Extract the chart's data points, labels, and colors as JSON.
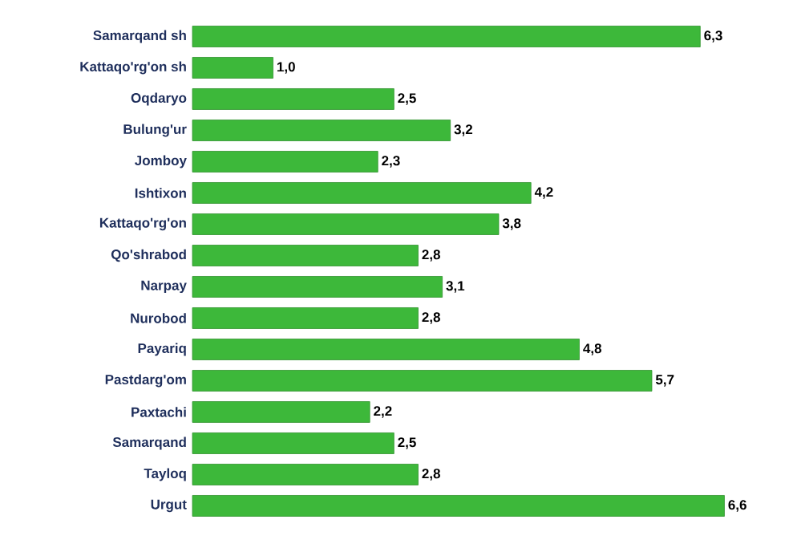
{
  "chart_data": {
    "type": "bar",
    "orientation": "horizontal",
    "categories": [
      "Samarqand sh",
      "Kattaqo'rg'on sh",
      "Oqdaryo",
      "Bulung'ur",
      "Jomboy",
      "Ishtixon",
      "Kattaqo'rg'on",
      "Qo'shrabod",
      "Narpay",
      "Nurobod",
      "Payariq",
      "Pastdarg'om",
      "Paxtachi",
      "Samarqand",
      "Tayloq",
      "Urgut"
    ],
    "values": [
      6.3,
      1.0,
      2.5,
      3.2,
      2.3,
      4.2,
      3.8,
      2.8,
      3.1,
      2.8,
      4.8,
      5.7,
      2.2,
      2.5,
      2.8,
      6.6
    ],
    "value_labels": [
      "6,3",
      "1,0",
      "2,5",
      "3,2",
      "2,3",
      "4,2",
      "3,8",
      "2,8",
      "3,1",
      "2,8",
      "4,8",
      "5,7",
      "2,2",
      "2,5",
      "2,8",
      "6,6"
    ],
    "color": "#3db83a"
  }
}
